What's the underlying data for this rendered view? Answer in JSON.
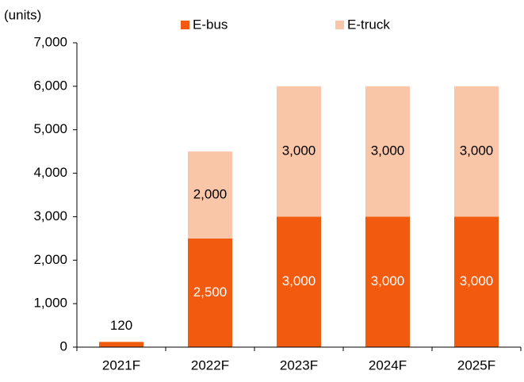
{
  "chart_data": {
    "type": "stacked_bar",
    "y_axis_label": "(units)",
    "categories": [
      "2021F",
      "2022F",
      "2023F",
      "2024F",
      "2025F"
    ],
    "series": [
      {
        "name": "E-bus",
        "color": "#f25a0f",
        "values": [
          120,
          2500,
          3000,
          3000,
          3000
        ],
        "value_labels": [
          "120",
          "2,500",
          "3,000",
          "3,000",
          "3,000"
        ]
      },
      {
        "name": "E-truck",
        "color": "#fac6a8",
        "values": [
          null,
          2000,
          3000,
          3000,
          3000
        ],
        "value_labels": [
          null,
          "2,000",
          "3,000",
          "3,000",
          "3,000"
        ]
      }
    ],
    "ylim": [
      0,
      7000
    ],
    "yticks": [
      0,
      {
        "value": 1000,
        "label": "1,000"
      },
      {
        "value": 2000,
        "label": "2,000"
      },
      {
        "value": 3000,
        "label": "3,000"
      },
      {
        "value": 4000,
        "label": "4,000"
      },
      {
        "value": 5000,
        "label": "5,000"
      },
      {
        "value": 6000,
        "label": "6,000"
      },
      {
        "value": 7000,
        "label": "7,000"
      }
    ],
    "legend": "top"
  }
}
